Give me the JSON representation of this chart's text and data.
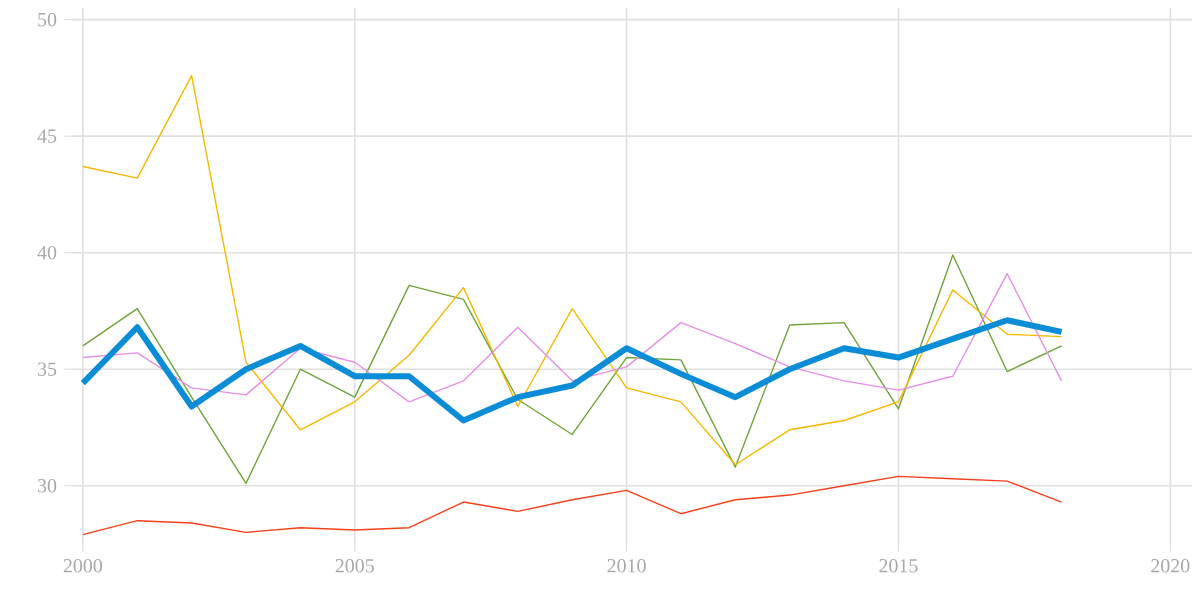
{
  "chart_data": {
    "type": "line",
    "x": [
      2000,
      2001,
      2002,
      2003,
      2004,
      2005,
      2006,
      2007,
      2008,
      2009,
      2010,
      2011,
      2012,
      2013,
      2014,
      2015,
      2016,
      2017,
      2018
    ],
    "series": [
      {
        "color": "#6fa33a",
        "values": [
          36.0,
          37.6,
          33.8,
          30.1,
          35.0,
          33.8,
          38.6,
          38.0,
          33.7,
          32.2,
          35.5,
          35.4,
          30.8,
          36.9,
          37.0,
          33.3,
          39.9,
          34.9,
          36.0
        ]
      },
      {
        "color": "#f5b800",
        "values": [
          43.7,
          43.2,
          47.6,
          35.3,
          32.4,
          33.6,
          35.6,
          38.5,
          33.4,
          37.6,
          34.2,
          33.6,
          30.9,
          32.4,
          32.8,
          33.6,
          38.4,
          36.5,
          36.4
        ]
      },
      {
        "color": "#e58fe6",
        "values": [
          35.5,
          35.7,
          34.2,
          33.9,
          35.9,
          35.3,
          33.6,
          34.5,
          36.8,
          34.5,
          35.1,
          37.0,
          36.1,
          35.1,
          34.5,
          34.1,
          34.7,
          39.1,
          34.5
        ]
      },
      {
        "color": "#f5401a",
        "values": [
          27.9,
          28.5,
          28.4,
          28.0,
          28.2,
          28.1,
          28.2,
          29.3,
          28.9,
          29.4,
          29.8,
          28.8,
          29.4,
          29.6,
          30.0,
          30.4,
          30.3,
          30.2,
          29.3
        ]
      },
      {
        "color": "#0a8dd6",
        "values": [
          34.4,
          36.8,
          33.4,
          35.0,
          36.0,
          34.7,
          34.7,
          32.8,
          33.8,
          34.3,
          35.9,
          34.8,
          33.8,
          35.0,
          35.9,
          35.5,
          36.3,
          37.1,
          36.6
        ]
      }
    ],
    "xlim": [
      1999.8,
      2020.4
    ],
    "xticks": [
      2000,
      2005,
      2010,
      2015,
      2020
    ],
    "ylim": [
      27.5,
      50.5
    ],
    "yticks": [
      30,
      35,
      40,
      45,
      50
    ],
    "grid": true,
    "marker": "none",
    "line_style": "solid"
  }
}
